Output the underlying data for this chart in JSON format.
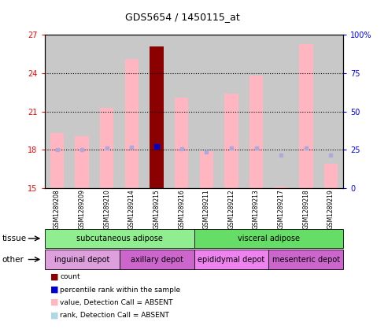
{
  "title": "GDS5654 / 1450115_at",
  "samples": [
    "GSM1289208",
    "GSM1289209",
    "GSM1289210",
    "GSM1289214",
    "GSM1289215",
    "GSM1289216",
    "GSM1289211",
    "GSM1289212",
    "GSM1289213",
    "GSM1289217",
    "GSM1289218",
    "GSM1289219"
  ],
  "ylim_left": [
    15,
    27
  ],
  "ylim_right": [
    0,
    100
  ],
  "yticks_left": [
    15,
    18,
    21,
    24,
    27
  ],
  "yticks_right": [
    0,
    25,
    50,
    75,
    100
  ],
  "pink_bar_top": [
    19.3,
    19.1,
    21.3,
    25.1,
    26.1,
    22.1,
    17.9,
    22.4,
    23.8,
    15.1,
    26.3,
    16.9
  ],
  "pink_bar_bottom": 15,
  "blue_marker_y": [
    18.0,
    18.0,
    18.15,
    18.2,
    18.25,
    18.1,
    17.85,
    18.15,
    18.15,
    17.62,
    18.15,
    17.62
  ],
  "red_bar_sample_idx": 4,
  "tissue_groups": [
    {
      "label": "subcutaneous adipose",
      "start": 0,
      "end": 5,
      "color": "#90EE90"
    },
    {
      "label": "visceral adipose",
      "start": 6,
      "end": 11,
      "color": "#66DD66"
    }
  ],
  "other_groups": [
    {
      "label": "inguinal depot",
      "start": 0,
      "end": 2,
      "color": "#DDA0DD"
    },
    {
      "label": "axillary depot",
      "start": 3,
      "end": 5,
      "color": "#CC66CC"
    },
    {
      "label": "epididymal depot",
      "start": 6,
      "end": 8,
      "color": "#EE82EE"
    },
    {
      "label": "mesenteric depot",
      "start": 9,
      "end": 11,
      "color": "#CC66CC"
    }
  ],
  "tissue_label": "tissue",
  "other_label": "other",
  "legend_items": [
    {
      "color": "#8B0000",
      "label": "count"
    },
    {
      "color": "#0000CD",
      "label": "percentile rank within the sample"
    },
    {
      "color": "#FFB6C1",
      "label": "value, Detection Call = ABSENT"
    },
    {
      "color": "#ADD8E6",
      "label": "rank, Detection Call = ABSENT"
    }
  ],
  "bar_width": 0.55,
  "pink_color": "#FFB6C1",
  "red_color": "#8B0000",
  "light_blue_color": "#AAAADD",
  "dark_blue_color": "#0000CD",
  "col_bg_color": "#C8C8C8",
  "plot_bg": "#FFFFFF"
}
